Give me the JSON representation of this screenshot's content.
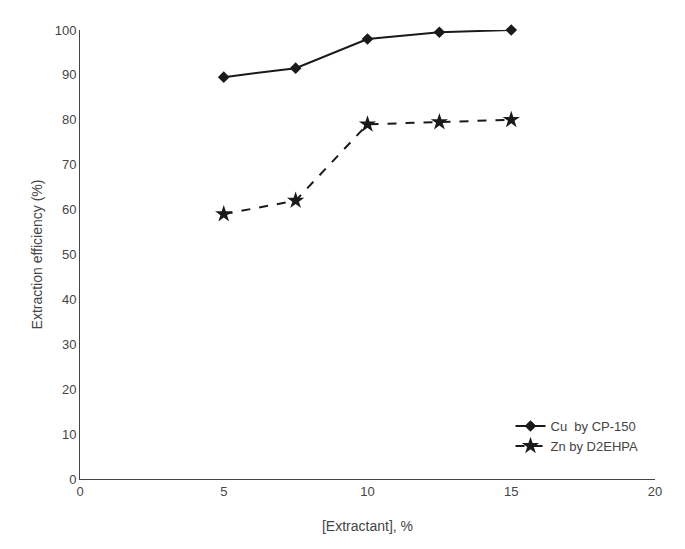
{
  "chart_data": {
    "type": "line",
    "xlabel": "[Extractant], %",
    "ylabel": "Extraction efficiency (%)",
    "x": [
      5,
      7.5,
      10,
      12.5,
      15
    ],
    "series": [
      {
        "name": "Cu  by CP-150",
        "color": "#1a1a1a",
        "marker": "diamond",
        "line_style": "solid",
        "values": [
          89.5,
          91.5,
          98,
          99.5,
          100
        ]
      },
      {
        "name": "Zn by D2EHPA",
        "color": "#1a1a1a",
        "marker": "star",
        "line_style": "dashed",
        "values": [
          59,
          62,
          79,
          79.5,
          80
        ]
      }
    ],
    "xlim": [
      0,
      20
    ],
    "ylim": [
      0,
      100
    ],
    "xticks": [
      0,
      5,
      10,
      15,
      20
    ],
    "yticks": [
      0,
      10,
      20,
      30,
      40,
      50,
      60,
      70,
      80,
      90,
      100
    ],
    "grid": false,
    "legend": "lower right"
  }
}
